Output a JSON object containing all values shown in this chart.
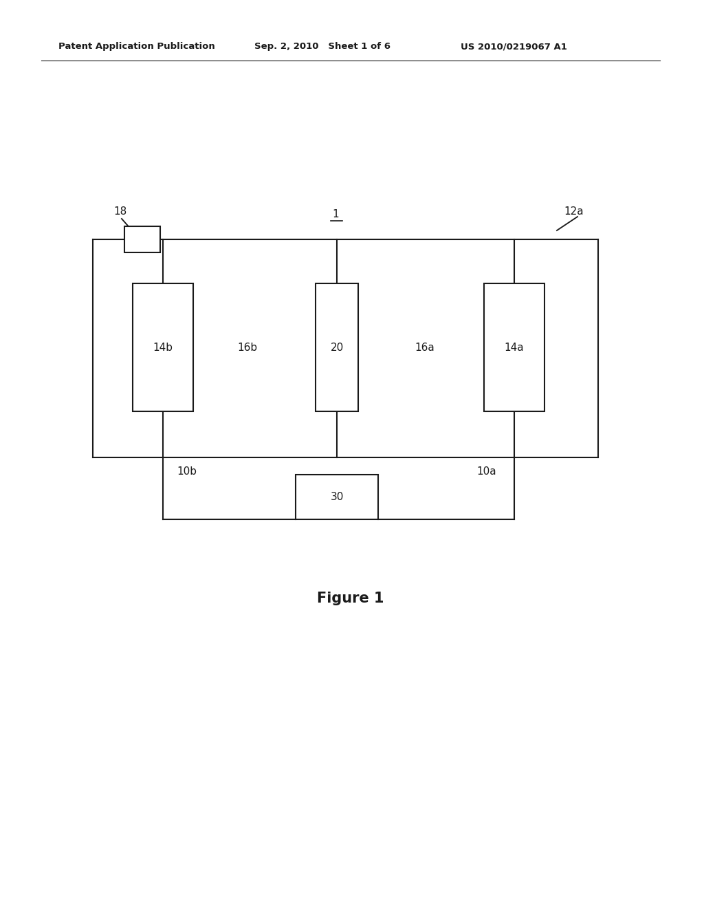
{
  "bg_color": "#ffffff",
  "line_color": "#1a1a1a",
  "line_width": 1.5,
  "header_left": "Patent Application Publication",
  "header_mid": "Sep. 2, 2010   Sheet 1 of 6",
  "header_right": "US 2010/0219067 A1",
  "figure_caption": "Figure 1",
  "label_1": "1",
  "label_12a": "12a",
  "label_18": "18",
  "label_14b": "14b",
  "label_16b": "16b",
  "label_20": "20",
  "label_16a": "16a",
  "label_14a": "14a",
  "label_10b": "10b",
  "label_10a": "10a",
  "label_30": "30",
  "font_size_header": 9.5,
  "font_size_labels": 11,
  "font_size_caption": 15
}
